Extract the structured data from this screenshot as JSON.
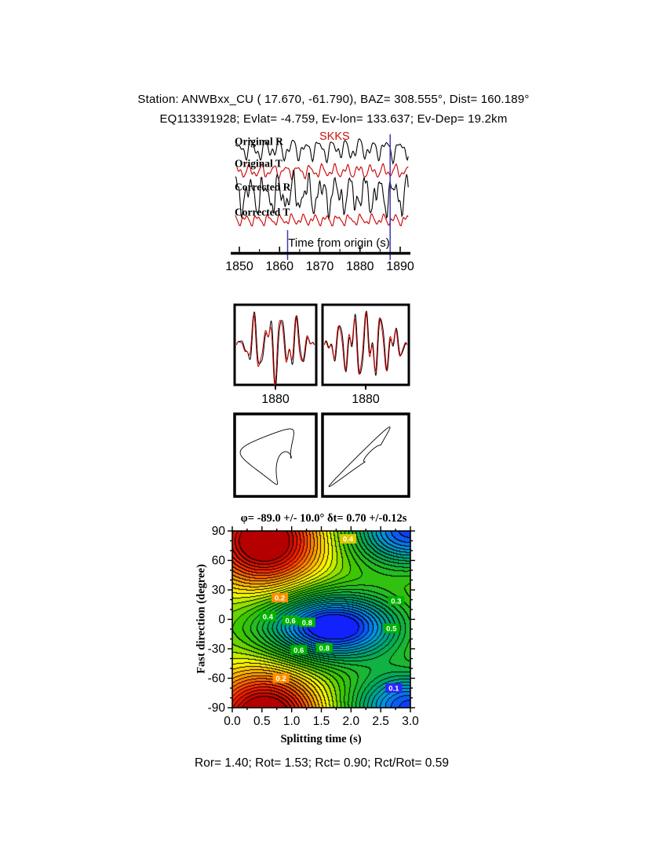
{
  "header": {
    "line1": "Station: ANWBxx_CU (  17.670,  -61.790), BAZ=  308.555°, Dist=  160.189°",
    "line2": "EQ113391928; Evlat=  -4.759, Ev-lon= 133.637; Ev-Dep= 19.2km"
  },
  "results_line": "Ror= 1.40; Rot= 1.53; Rct= 0.90; Rct/Rot= 0.59",
  "chart_data": [
    {
      "type": "line",
      "name": "waveform-traces",
      "phase_label": "SKKS",
      "xlabel": "Time from origin (s)",
      "xlim": [
        1849,
        1892
      ],
      "x_ticks": [
        1850,
        1860,
        1870,
        1880,
        1890
      ],
      "window_markers": [
        1862,
        1887.5
      ],
      "marker_color": "#3a3ab4",
      "traces": [
        {
          "label": "Original R",
          "color": "#000000",
          "base": 190,
          "amp": 9,
          "comps": [
            [
              1,
              0.3,
              0.0
            ],
            [
              0.55,
              0.55,
              1.2
            ],
            [
              0.3,
              0.85,
              2.4
            ],
            [
              0.2,
              0.18,
              4.0
            ]
          ]
        },
        {
          "label": "Original T",
          "color": "#cc0000",
          "base": 218,
          "amp": 6,
          "comps": [
            [
              1,
              0.33,
              0.7
            ],
            [
              0.5,
              0.6,
              2.0
            ],
            [
              0.3,
              0.9,
              0.5
            ]
          ]
        },
        {
          "label": "Corrected R",
          "color": "#000000",
          "base": 248,
          "amp": 16,
          "comps": [
            [
              1,
              0.28,
              1.5
            ],
            [
              0.6,
              0.5,
              0.2
            ],
            [
              0.35,
              0.75,
              2.8
            ],
            [
              0.25,
              1.1,
              1.0
            ]
          ]
        },
        {
          "label": "Corrected T",
          "color": "#cc0000",
          "base": 280,
          "amp": 5,
          "comps": [
            [
              1,
              0.35,
              2.2
            ],
            [
              0.5,
              0.65,
              0.9
            ],
            [
              0.3,
              1.0,
              3.1
            ]
          ]
        }
      ]
    },
    {
      "type": "line",
      "name": "fast-slow-overlay",
      "panels": [
        {
          "tick_label": "1880",
          "series": [
            {
              "color": "#000000",
              "amp": 1.0,
              "comps": [
                [
                  1,
                  5.5,
                  0.0
                ],
                [
                  0.55,
                  9,
                  1.1
                ],
                [
                  0.3,
                  13,
                  2.0
                ]
              ]
            },
            {
              "color": "#cc0000",
              "amp": 0.95,
              "comps": [
                [
                  1,
                  5.5,
                  0.45
                ],
                [
                  0.55,
                  9,
                  1.55
                ],
                [
                  0.3,
                  13,
                  2.45
                ]
              ]
            }
          ]
        },
        {
          "tick_label": "1880",
          "series": [
            {
              "color": "#000000",
              "amp": 1.0,
              "comps": [
                [
                  1,
                  6,
                  0.8
                ],
                [
                  0.5,
                  10,
                  2.2
                ],
                [
                  0.35,
                  14,
                  0.3
                ]
              ]
            },
            {
              "color": "#cc0000",
              "amp": 0.95,
              "comps": [
                [
                  1,
                  6,
                  1.2
                ],
                [
                  0.5,
                  10,
                  2.6
                ],
                [
                  0.35,
                  14,
                  0.7
                ]
              ]
            }
          ]
        }
      ]
    },
    {
      "type": "scatter",
      "name": "particle-motion",
      "panels": [
        {
          "x_comps": [
            [
              1,
              1,
              0.0
            ],
            [
              0.5,
              2,
              0.7
            ],
            [
              0.3,
              3,
              1.9
            ]
          ],
          "y_comps": [
            [
              1,
              1,
              1.25
            ],
            [
              0.45,
              2,
              2.6
            ],
            [
              0.25,
              3,
              0.4
            ]
          ]
        },
        {
          "x_comps": [
            [
              1,
              1,
              0.3
            ],
            [
              0.55,
              2,
              1.0
            ],
            [
              0.3,
              3,
              2.2
            ]
          ],
          "y_comps": [
            [
              0.95,
              1,
              0.55
            ],
            [
              0.5,
              2,
              1.25
            ],
            [
              0.3,
              3,
              2.0
            ]
          ]
        }
      ]
    },
    {
      "type": "heatmap",
      "name": "splitting-error-surface",
      "title": "φ= -89.0 +/- 10.0° δt= 0.70 +/-0.12s",
      "xlabel": "Splitting time (s)",
      "ylabel": "Fast direction (degree)",
      "xlim": [
        0,
        3
      ],
      "ylim": [
        -90,
        90
      ],
      "x_ticks": [
        "0.0",
        "0.5",
        "1.0",
        "1.5",
        "2.0",
        "2.5",
        "3.0"
      ],
      "y_ticks": [
        90,
        60,
        30,
        0,
        -30,
        -60,
        -90
      ],
      "levels_step": 0.033,
      "field": {
        "base": 0.55,
        "gaussians": [
          {
            "a": 0.55,
            "t": 0.55,
            "th": 80,
            "st": 0.65,
            "sth": 32
          },
          {
            "a": -0.6,
            "t": 1.7,
            "th": -8,
            "st": 0.8,
            "sth": 24
          },
          {
            "a": -0.5,
            "t": 3.0,
            "th": 90,
            "st": 0.7,
            "sth": 26
          }
        ]
      },
      "palette": [
        [
          0.0,
          [
            20,
            20,
            255
          ]
        ],
        [
          0.15,
          [
            0,
            150,
            230
          ]
        ],
        [
          0.3,
          [
            0,
            170,
            90
          ]
        ],
        [
          0.48,
          [
            60,
            200,
            0
          ]
        ],
        [
          0.62,
          [
            255,
            255,
            0
          ]
        ],
        [
          0.75,
          [
            255,
            150,
            0
          ]
        ],
        [
          0.88,
          [
            255,
            40,
            0
          ]
        ],
        [
          1.0,
          [
            180,
            0,
            0
          ]
        ]
      ],
      "contour_labels": [
        {
          "v": "0.2",
          "t": 0.8,
          "th": 22,
          "bg": "#ff9000"
        },
        {
          "v": "0.4",
          "t": 0.6,
          "th": 3,
          "bg": "#00b400"
        },
        {
          "v": "0.6",
          "t": 0.98,
          "th": -1,
          "bg": "#00b400"
        },
        {
          "v": "0.8",
          "t": 1.26,
          "th": -3,
          "bg": "#00b400"
        },
        {
          "v": "0.6",
          "t": 1.12,
          "th": -31,
          "bg": "#00b400"
        },
        {
          "v": "0.8",
          "t": 1.55,
          "th": -29,
          "bg": "#00b400"
        },
        {
          "v": "0.5",
          "t": 2.68,
          "th": -9,
          "bg": "#00b400"
        },
        {
          "v": "0.3",
          "t": 2.76,
          "th": 19,
          "bg": "#00b400"
        },
        {
          "v": "0.4",
          "t": 1.95,
          "th": 82,
          "bg": "#d8c800"
        },
        {
          "v": "0.2",
          "t": 0.82,
          "th": -60,
          "bg": "#ff9000"
        },
        {
          "v": "0.1",
          "t": 2.72,
          "th": -70,
          "bg": "#2828ff"
        }
      ]
    }
  ]
}
